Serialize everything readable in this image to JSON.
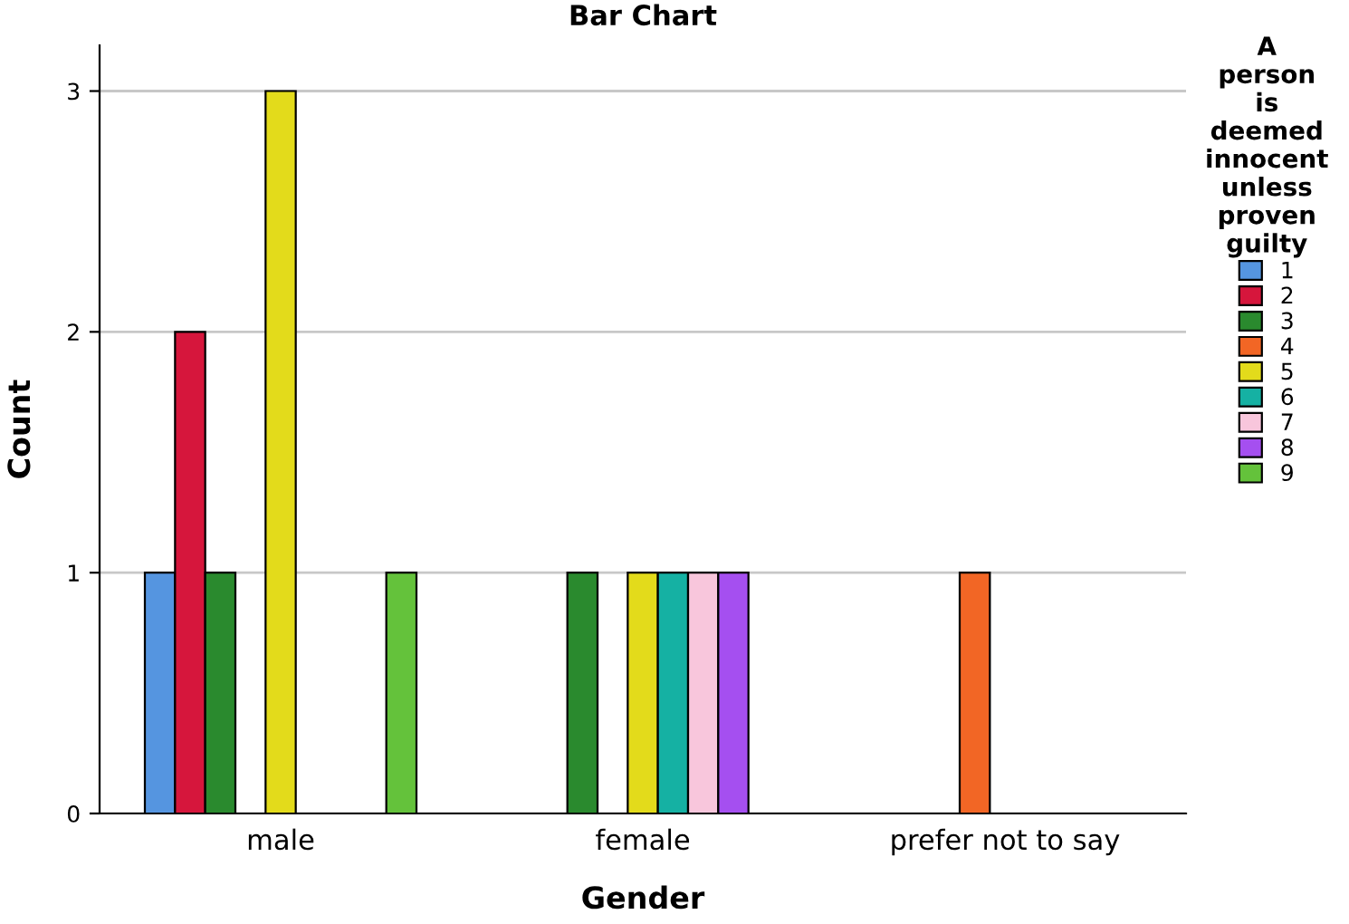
{
  "chart_data": {
    "type": "bar",
    "title": "Bar Chart",
    "xlabel": "Gender",
    "ylabel": "Count",
    "legend_title": "A person is deemed innocent unless proven guilty",
    "categories": [
      "male",
      "female",
      "prefer not to say"
    ],
    "series": [
      {
        "name": "1",
        "color": "#5595e0",
        "values": [
          1,
          null,
          null
        ]
      },
      {
        "name": "2",
        "color": "#d6163c",
        "values": [
          2,
          null,
          null
        ]
      },
      {
        "name": "3",
        "color": "#2a8a2e",
        "values": [
          1,
          1,
          null
        ]
      },
      {
        "name": "4",
        "color": "#f26625",
        "values": [
          null,
          null,
          1
        ]
      },
      {
        "name": "5",
        "color": "#e3db1b",
        "values": [
          3,
          1,
          null
        ]
      },
      {
        "name": "6",
        "color": "#15b1a3",
        "values": [
          null,
          1,
          null
        ]
      },
      {
        "name": "7",
        "color": "#f8c6dc",
        "values": [
          null,
          1,
          null
        ]
      },
      {
        "name": "8",
        "color": "#a54ff0",
        "values": [
          null,
          1,
          null
        ]
      },
      {
        "name": "9",
        "color": "#64c23b",
        "values": [
          1,
          null,
          null
        ]
      }
    ],
    "ylim": [
      0,
      3.19
    ],
    "yticks": [
      0,
      1,
      2,
      3
    ],
    "grid": "y",
    "legend": "right"
  }
}
